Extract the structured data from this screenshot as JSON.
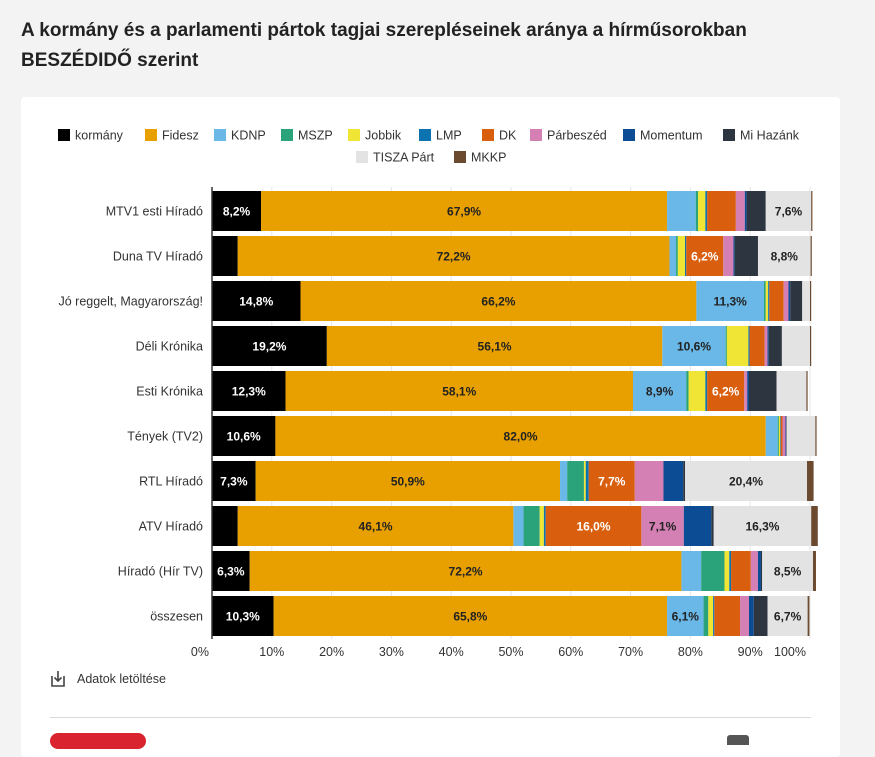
{
  "title": "A kormány és a parlamenti pártok tagjai szerepléseinek aránya a hírműsorokban BESZÉDIDŐ szerint",
  "download": {
    "label": "Adatok letöltése"
  },
  "chart_data": {
    "type": "bar",
    "orientation": "horizontal",
    "stacked": true,
    "categories": [
      "MTV1 esti Híradó",
      "Duna TV Híradó",
      "Jó reggelt, Magyarország!",
      "Déli Krónika",
      "Esti Krónika",
      "Tények (TV2)",
      "RTL Híradó",
      "ATV Híradó",
      "Híradó (Hír TV)",
      "összesen"
    ],
    "xlim": [
      0,
      100
    ],
    "x_tick_labels": [
      "0%",
      "10%",
      "20%",
      "30%",
      "40%",
      "50%",
      "60%",
      "70%",
      "80%",
      "90%",
      "100%"
    ],
    "legend_position": "top",
    "series": [
      {
        "name": "kormány",
        "color": "#000000",
        "label_color": "#ffffff",
        "values": [
          8.2,
          4.3,
          14.8,
          19.2,
          12.3,
          10.6,
          7.3,
          4.3,
          6.3,
          10.3
        ],
        "labels": [
          "8,2%",
          "",
          "14,8%",
          "19,2%",
          "12,3%",
          "10,6%",
          "7,3%",
          "",
          "6,3%",
          "10,3%"
        ]
      },
      {
        "name": "Fidesz",
        "color": "#e8a000",
        "label_color": "#222222",
        "values": [
          67.9,
          72.2,
          66.2,
          56.1,
          58.1,
          82.0,
          50.9,
          46.1,
          72.2,
          65.8
        ],
        "labels": [
          "67,9%",
          "72,2%",
          "66,2%",
          "56,1%",
          "58,1%",
          "82,0%",
          "50,9%",
          "46,1%",
          "72,2%",
          "65,8%"
        ]
      },
      {
        "name": "KDNP",
        "color": "#6ab8e8",
        "label_color": "#222222",
        "values": [
          4.8,
          1.1,
          11.3,
          10.6,
          8.9,
          2.0,
          1.2,
          1.7,
          3.3,
          6.1
        ],
        "labels": [
          "",
          "",
          "11,3%",
          "10,6%",
          "8,9%",
          "",
          "",
          "",
          "",
          "6,1%"
        ]
      },
      {
        "name": "MSZP",
        "color": "#2aa37a",
        "label_color": "#ffffff",
        "values": [
          0.4,
          0.3,
          0.3,
          0.2,
          0.4,
          0.2,
          2.8,
          2.7,
          3.9,
          0.8
        ],
        "labels": [
          "",
          "",
          "",
          "",
          "",
          "",
          "",
          "",
          "",
          ""
        ]
      },
      {
        "name": "Jobbik",
        "color": "#f0e534",
        "label_color": "#222222",
        "values": [
          1.2,
          1.2,
          0.4,
          3.6,
          2.8,
          0.2,
          0.3,
          0.7,
          0.8,
          0.8
        ],
        "labels": [
          "",
          "",
          "",
          "",
          "",
          "",
          "",
          "",
          "",
          ""
        ]
      },
      {
        "name": "LMP",
        "color": "#0d72b0",
        "label_color": "#ffffff",
        "values": [
          0.3,
          0.2,
          0.2,
          0.2,
          0.3,
          0.1,
          0.5,
          0.3,
          0.3,
          0.2
        ],
        "labels": [
          "",
          "",
          "",
          "",
          "",
          "",
          "",
          "",
          "",
          ""
        ]
      },
      {
        "name": "DK",
        "color": "#d95f0e",
        "label_color": "#ffffff",
        "values": [
          4.8,
          6.2,
          2.4,
          2.5,
          6.2,
          0.3,
          7.7,
          16.0,
          3.3,
          4.3
        ],
        "labels": [
          "",
          "6,2%",
          "",
          "",
          "6,2%",
          "",
          "7,7%",
          "16,0%",
          "",
          ""
        ]
      },
      {
        "name": "Párbeszéd",
        "color": "#d580b5",
        "label_color": "#222222",
        "values": [
          1.5,
          1.7,
          0.8,
          0.5,
          0.5,
          0.5,
          4.8,
          7.1,
          1.2,
          1.5
        ],
        "labels": [
          "",
          "",
          "",
          "",
          "",
          "",
          "",
          "7,1%",
          "",
          ""
        ]
      },
      {
        "name": "Momentum",
        "color": "#0b4c94",
        "label_color": "#ffffff",
        "values": [
          0.3,
          0.2,
          0.3,
          0.2,
          0.3,
          0.1,
          3.3,
          4.6,
          0.5,
          0.8
        ],
        "labels": [
          "",
          "",
          "",
          "",
          "",
          "",
          "",
          "",
          "",
          ""
        ]
      },
      {
        "name": "Mi Hazánk",
        "color": "#2d3540",
        "label_color": "#ffffff",
        "values": [
          3.2,
          3.9,
          2.0,
          2.2,
          4.6,
          0.1,
          0.3,
          0.4,
          0.2,
          2.3
        ],
        "labels": [
          "",
          "",
          "",
          "",
          "",
          "",
          "",
          "",
          "",
          ""
        ]
      },
      {
        "name": "TISZA Párt",
        "color": "#e3e3e3",
        "label_color": "#222222",
        "values": [
          7.6,
          8.8,
          1.3,
          4.7,
          5.0,
          4.8,
          20.4,
          16.3,
          8.5,
          6.7
        ],
        "labels": [
          "7,6%",
          "8,8%",
          "",
          "",
          "",
          "",
          "20,4%",
          "16,3%",
          "8,5%",
          "6,7%"
        ]
      },
      {
        "name": "MKKP",
        "color": "#6b4a2f",
        "label_color": "#ffffff",
        "values": [
          0.2,
          0.2,
          0.2,
          0.2,
          0.2,
          0.2,
          1.1,
          1.1,
          0.5,
          0.3
        ],
        "labels": [
          "",
          "",
          "",
          "",
          "",
          "",
          "",
          "",
          "",
          ""
        ]
      }
    ]
  }
}
